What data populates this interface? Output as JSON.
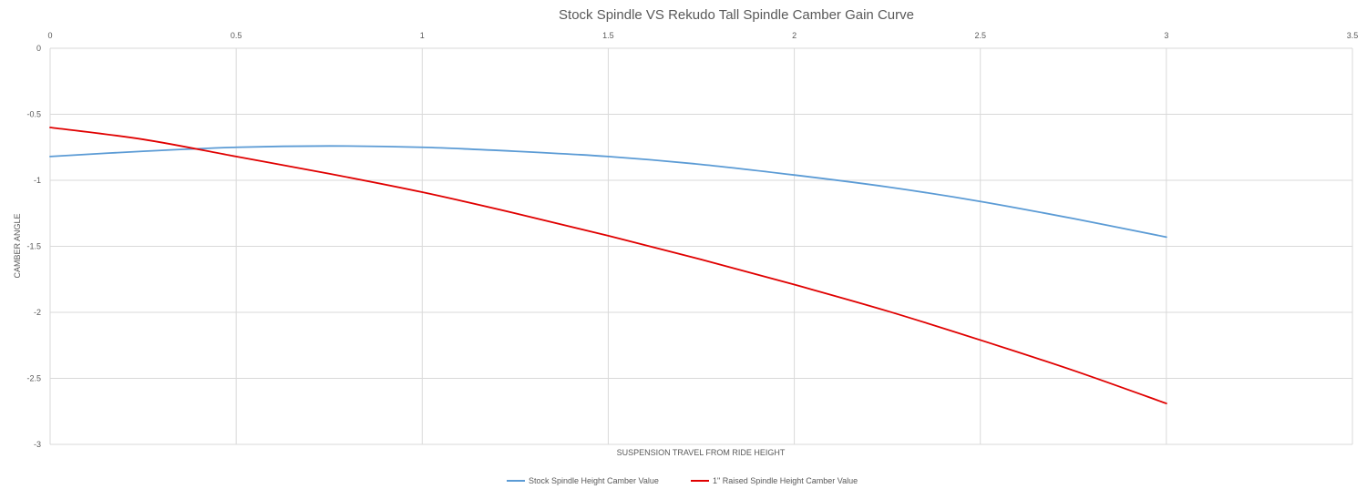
{
  "chart_data": {
    "type": "scatter",
    "title": "Stock Spindle VS Rekudo Tall Spindle Camber Gain Curve",
    "xlabel": "SUSPENSION TRAVEL FROM RIDE HEIGHT",
    "ylabel": "CAMBER ANGLE",
    "xlim": [
      0,
      3.5
    ],
    "ylim": [
      -3,
      0
    ],
    "x_ticks": [
      "0",
      "0.5",
      "1",
      "1.5",
      "2",
      "2.5",
      "3",
      "3.5"
    ],
    "y_ticks": [
      "0",
      "-0.5",
      "-1",
      "-1.5",
      "-2",
      "-2.5",
      "-3"
    ],
    "x_axis_position": "top",
    "grid": true,
    "legend_position": "bottom",
    "series": [
      {
        "name": "Stock Spindle Height Camber Value",
        "color": "#5b9bd5",
        "x": [
          0,
          0.25,
          0.5,
          0.75,
          1,
          1.25,
          1.5,
          1.75,
          2,
          2.25,
          2.5,
          2.75,
          3
        ],
        "y": [
          -0.82,
          -0.78,
          -0.75,
          -0.74,
          -0.75,
          -0.78,
          -0.82,
          -0.88,
          -0.96,
          -1.05,
          -1.16,
          -1.29,
          -1.43
        ]
      },
      {
        "name": "1\" Raised Spindle Height Camber Value",
        "color": "#e00000",
        "x": [
          0,
          0.25,
          0.5,
          0.75,
          1,
          1.25,
          1.5,
          1.75,
          2,
          2.25,
          2.5,
          2.75,
          3
        ],
        "y": [
          -0.6,
          -0.69,
          -0.82,
          -0.95,
          -1.09,
          -1.25,
          -1.42,
          -1.6,
          -1.79,
          -1.99,
          -2.21,
          -2.44,
          -2.69
        ]
      }
    ]
  }
}
